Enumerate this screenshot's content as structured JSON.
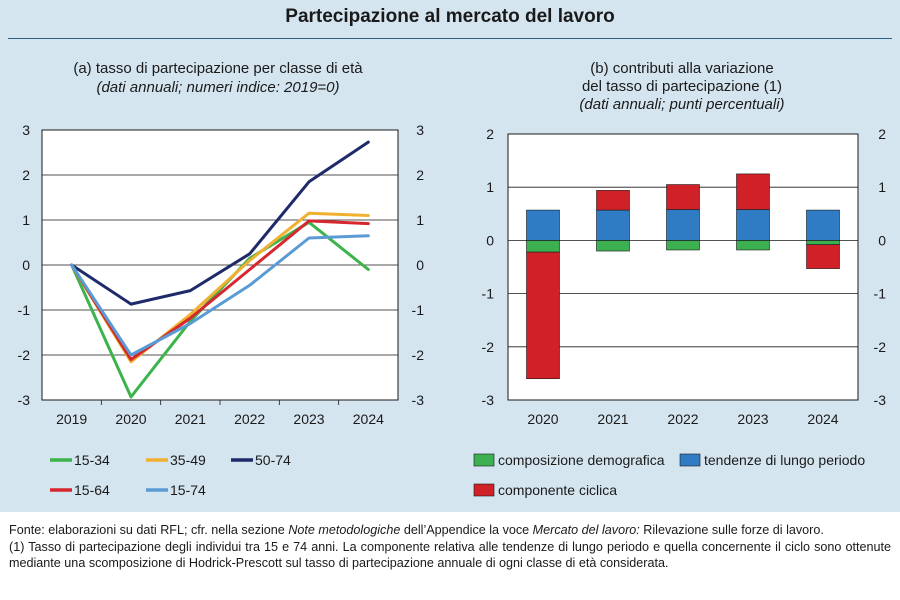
{
  "title": "Partecipazione al mercato del lavoro",
  "panel_a": {
    "heading": "(a) tasso di partecipazione per classe di età",
    "subheading": "(dati annuali; numeri indice: 2019=0)"
  },
  "panel_b": {
    "heading_1": "(b) contributi alla variazione",
    "heading_2": "del tasso di partecipazione (1)",
    "subheading": "(dati annuali; punti percentuali)"
  },
  "chart_data": [
    {
      "type": "line",
      "title": "(a) tasso di partecipazione per classe di età",
      "subtitle": "(dati annuali; numeri indice: 2019=0)",
      "x": [
        "2019",
        "2020",
        "2021",
        "2022",
        "2023",
        "2024"
      ],
      "ylim": [
        -3,
        3
      ],
      "yticks": [
        "3",
        "2",
        "1",
        "0",
        "-1",
        "-2",
        "-3"
      ],
      "grid": true,
      "legend_position": "bottom",
      "series": [
        {
          "name": "15-34",
          "color": "#3cb44b",
          "values": [
            0,
            -2.93,
            -1.25,
            0.15,
            0.95,
            -0.1
          ]
        },
        {
          "name": "35-49",
          "color": "#f0b030",
          "values": [
            0,
            -2.15,
            -1.1,
            0.1,
            1.15,
            1.1
          ]
        },
        {
          "name": "50-74",
          "color": "#1f2a6b",
          "values": [
            0,
            -0.87,
            -0.57,
            0.25,
            1.85,
            2.73
          ]
        },
        {
          "name": "15-64",
          "color": "#d7262d",
          "values": [
            0,
            -2.1,
            -1.18,
            -0.1,
            0.98,
            0.92
          ]
        },
        {
          "name": "15-74",
          "color": "#5b9bd5",
          "values": [
            0,
            -2.0,
            -1.3,
            -0.45,
            0.6,
            0.65
          ]
        }
      ]
    },
    {
      "type": "bar",
      "stacked": true,
      "title": "(b) contributi alla variazione del tasso di partecipazione (1)",
      "subtitle": "(dati annuali; punti percentuali)",
      "categories": [
        "2020",
        "2021",
        "2022",
        "2023",
        "2024"
      ],
      "ylim": [
        -3,
        2
      ],
      "yticks": [
        "2",
        "1",
        "0",
        "-1",
        "-2",
        "-3"
      ],
      "grid": true,
      "legend_position": "bottom",
      "series": [
        {
          "name": "composizione demografica",
          "color": "#3cb050",
          "values": [
            -0.22,
            -0.2,
            -0.18,
            -0.18,
            -0.08
          ]
        },
        {
          "name": "tendenze di lungo periodo",
          "color": "#2f7cc4",
          "values": [
            0.57,
            0.57,
            0.58,
            0.58,
            0.57
          ]
        },
        {
          "name": "componente ciclica",
          "color": "#d12128",
          "values": [
            -2.38,
            0.37,
            0.47,
            0.67,
            -0.45
          ]
        }
      ]
    }
  ],
  "footer": {
    "fonte_1": "Fonte: elaborazioni su dati RFL; cfr. nella sezione ",
    "fonte_em_1": "Note metodologiche",
    "fonte_2": " dell’Appendice la voce ",
    "fonte_em_2": "Mercato del lavoro:",
    "fonte_3": " Rilevazione sulle forze di lavoro.",
    "note_1": "(1) Tasso di partecipazione degli individui tra 15 e 74 anni. La componente relativa alle tendenze di lungo periodo e quella concernente il ciclo sono ottenute mediante una scomposizione di Hodrick-Prescott sul tasso di partecipazione annuale di ogni classe di età considerata."
  }
}
